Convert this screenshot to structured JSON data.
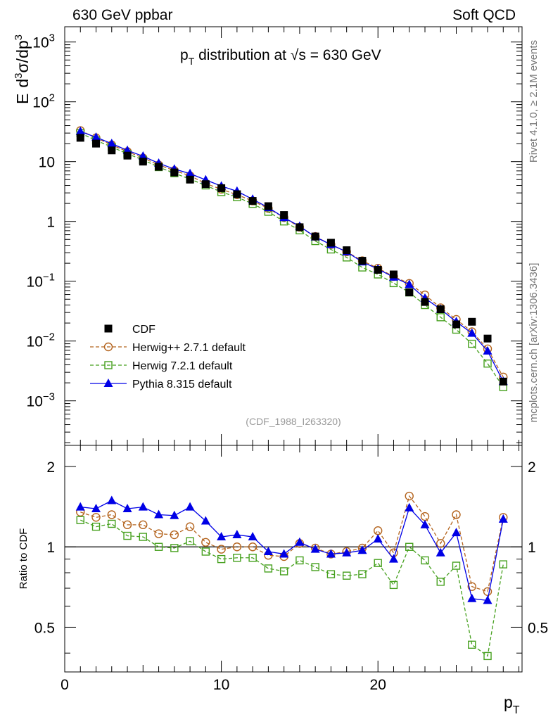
{
  "header": {
    "left": "630 GeV ppbar",
    "right": "Soft QCD"
  },
  "side": {
    "rivet": "Rivet 4.1.0, ≥ 2.1M events",
    "mcplots": "mcplots.cern.ch [arXiv:1306.3436]"
  },
  "chart_data": [
    {
      "type": "scatter",
      "title_parts": {
        "p": "p",
        "sub": "T",
        "rest1": " distribution at ",
        "sqrt": "√s",
        "rest2": " = 630 GeV"
      },
      "ylabel_parts": {
        "e": "E",
        "d3sigma": "d",
        "sup": "3",
        "sigma": "σ/dp",
        "sup2": "3"
      },
      "y_scale": "log",
      "ylim": [
        0.00018,
        1800
      ],
      "xlim": [
        0,
        29.2
      ],
      "y_ticks": [
        {
          "value": 0.001,
          "base": "10",
          "exp": "−3"
        },
        {
          "value": 0.01,
          "base": "10",
          "exp": "−2"
        },
        {
          "value": 0.1,
          "base": "10",
          "exp": "−1"
        },
        {
          "value": 1,
          "base": "1",
          "exp": ""
        },
        {
          "value": 10,
          "base": "10",
          "exp": ""
        },
        {
          "value": 100,
          "base": "10",
          "exp": "2"
        },
        {
          "value": 1000,
          "base": "10",
          "exp": "3"
        }
      ],
      "x": [
        1,
        2,
        3,
        4,
        5,
        6,
        7,
        8,
        9,
        10,
        11,
        12,
        13,
        14,
        15,
        16,
        17,
        18,
        19,
        20,
        21,
        22,
        23,
        24,
        25,
        26,
        27,
        28
      ],
      "series": [
        {
          "name": "CDF",
          "marker": "filled-square",
          "color": "#000000",
          "values": [
            25,
            20,
            15.4,
            12.6,
            10,
            8.2,
            6.6,
            5,
            4.2,
            3.6,
            2.85,
            2.2,
            1.8,
            1.28,
            0.8,
            0.56,
            0.44,
            0.33,
            0.22,
            0.155,
            0.13,
            0.065,
            0.045,
            0.034,
            0.019,
            0.021,
            0.011,
            0.0021
          ]
        },
        {
          "name": "Herwig++ 2.7.1 default",
          "marker": "open-circle",
          "color": "#b4641e",
          "values": [
            33,
            25,
            19,
            14.7,
            11.5,
            8.8,
            7.1,
            5.8,
            4.3,
            3.45,
            2.8,
            2.2,
            1.65,
            1.16,
            0.8,
            0.56,
            0.41,
            0.31,
            0.22,
            0.165,
            0.12,
            0.092,
            0.059,
            0.036,
            0.023,
            0.0143,
            0.0074,
            0.0025
          ]
        },
        {
          "name": "Herwig 7.2.1 default",
          "marker": "open-square",
          "color": "#46a01e",
          "values": [
            30,
            22.6,
            17.6,
            13.5,
            10.7,
            8.1,
            6.4,
            5.1,
            4,
            3.1,
            2.55,
            1.97,
            1.45,
            1,
            0.71,
            0.47,
            0.34,
            0.25,
            0.17,
            0.13,
            0.093,
            0.065,
            0.04,
            0.025,
            0.0155,
            0.009,
            0.0042,
            0.0017
          ]
        },
        {
          "name": "Pythia 8.315 default",
          "marker": "filled-triangle",
          "color": "#0000e6",
          "values": [
            32,
            25.5,
            20,
            15.4,
            12.3,
            9.4,
            7.5,
            6.3,
            4.95,
            3.9,
            3.2,
            2.35,
            1.7,
            1.16,
            0.83,
            0.55,
            0.41,
            0.31,
            0.21,
            0.16,
            0.117,
            0.088,
            0.052,
            0.034,
            0.021,
            0.0135,
            0.0068,
            0.0021
          ]
        }
      ],
      "legend_position": "bottom-left",
      "annotation": "(CDF_1988_I263320)"
    },
    {
      "type": "line",
      "ylabel": "Ratio to CDF",
      "xlabel_parts": {
        "p": "p",
        "sub": "T"
      },
      "y_scale": "log",
      "ylim": [
        0.34,
        2.4
      ],
      "xlim": [
        0,
        29.2
      ],
      "reference_line": 1,
      "y_tick_labels": [
        {
          "value": 0.5,
          "label": "0.5"
        },
        {
          "value": 1,
          "label": "1"
        },
        {
          "value": 2,
          "label": "2"
        }
      ],
      "x_tick_labels": [
        {
          "value": 0,
          "label": "0"
        },
        {
          "value": 10,
          "label": "10"
        },
        {
          "value": 20,
          "label": "20"
        }
      ],
      "x": [
        1,
        2,
        3,
        4,
        5,
        6,
        7,
        8,
        9,
        10,
        11,
        12,
        13,
        14,
        15,
        16,
        17,
        18,
        19,
        20,
        21,
        22,
        23,
        24,
        25,
        26,
        27,
        28
      ],
      "series": [
        {
          "name": "Herwig++ 2.7.1 default",
          "marker": "open-circle",
          "color": "#b4641e",
          "values": [
            1.35,
            1.29,
            1.32,
            1.21,
            1.21,
            1.12,
            1.11,
            1.19,
            1.04,
            0.98,
            1.0,
            1.0,
            0.93,
            0.92,
            1.03,
            0.99,
            0.94,
            0.96,
            0.99,
            1.15,
            0.95,
            1.55,
            1.3,
            1.03,
            1.32,
            0.71,
            0.68,
            1.29
          ]
        },
        {
          "name": "Herwig 7.2.1 default",
          "marker": "open-square",
          "color": "#46a01e",
          "values": [
            1.26,
            1.19,
            1.22,
            1.1,
            1.09,
            1.0,
            0.99,
            1.05,
            0.96,
            0.9,
            0.91,
            0.91,
            0.83,
            0.81,
            0.89,
            0.84,
            0.79,
            0.78,
            0.79,
            0.87,
            0.72,
            1.0,
            0.89,
            0.74,
            0.85,
            0.43,
            0.39,
            0.86
          ]
        },
        {
          "name": "Pythia 8.315 default",
          "marker": "filled-triangle",
          "color": "#0000e6",
          "values": [
            1.41,
            1.39,
            1.49,
            1.39,
            1.41,
            1.32,
            1.31,
            1.41,
            1.25,
            1.09,
            1.11,
            1.09,
            0.96,
            0.94,
            1.04,
            0.98,
            0.94,
            0.95,
            0.97,
            1.07,
            0.9,
            1.4,
            1.21,
            0.95,
            1.13,
            0.64,
            0.63,
            1.27
          ]
        }
      ]
    }
  ]
}
